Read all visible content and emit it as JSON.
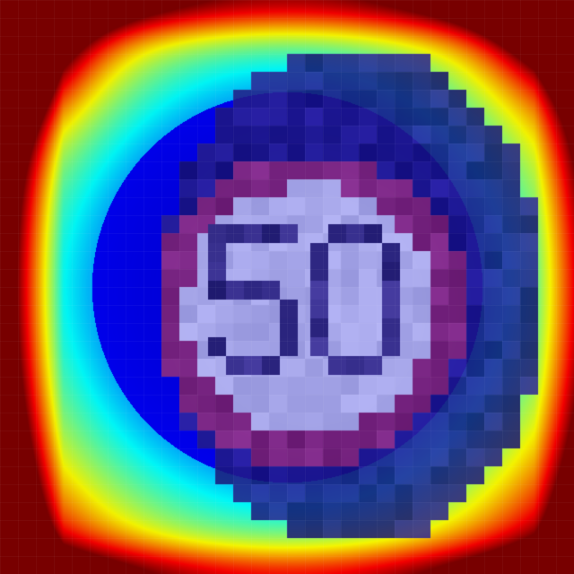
{
  "image": {
    "description_kind": "activation-heatmap-overlay",
    "sign": {
      "text": "50",
      "ring_color": "#7a1a6e",
      "face_color": "#a6a8e8",
      "digit_color": "#1e1878"
    },
    "colormap": {
      "name": "jet",
      "low": "#0a0a8c",
      "high": "#c80a0a"
    }
  }
}
